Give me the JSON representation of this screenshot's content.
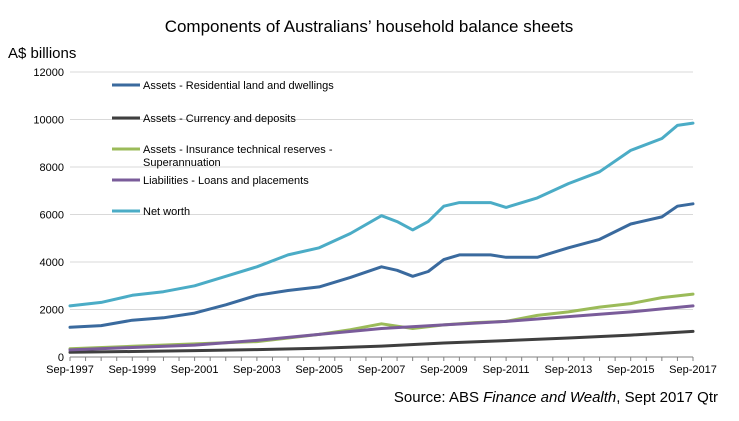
{
  "chart_data": {
    "type": "line",
    "title": "Components of Australians’ household balance sheets",
    "ylabel": "A$ billions",
    "xlabel": "",
    "ylim": [
      0,
      12000
    ],
    "yticks": [
      0,
      2000,
      4000,
      6000,
      8000,
      10000,
      12000
    ],
    "xlim": [
      "1997-09",
      "2017-09"
    ],
    "x_tick_labels": [
      "Sep-1997",
      "Sep-1999",
      "Sep-2001",
      "Sep-2003",
      "Sep-2005",
      "Sep-2007",
      "Sep-2009",
      "Sep-2011",
      "Sep-2013",
      "Sep-2015",
      "Sep-2017"
    ],
    "grid": "horizontal",
    "legend_placement": "top-left",
    "series": [
      {
        "name": "Assets - Residential land and dwellings",
        "color": "#3a6a9e",
        "points": [
          [
            "1997-09",
            1250
          ],
          [
            "1998-09",
            1320
          ],
          [
            "1999-09",
            1550
          ],
          [
            "2000-09",
            1650
          ],
          [
            "2001-09",
            1850
          ],
          [
            "2002-09",
            2200
          ],
          [
            "2003-09",
            2600
          ],
          [
            "2004-09",
            2800
          ],
          [
            "2005-09",
            2950
          ],
          [
            "2006-09",
            3350
          ],
          [
            "2007-09",
            3800
          ],
          [
            "2008-03",
            3650
          ],
          [
            "2008-09",
            3400
          ],
          [
            "2009-03",
            3600
          ],
          [
            "2009-09",
            4100
          ],
          [
            "2010-03",
            4300
          ],
          [
            "2010-09",
            4300
          ],
          [
            "2011-03",
            4300
          ],
          [
            "2011-09",
            4200
          ],
          [
            "2012-09",
            4200
          ],
          [
            "2013-09",
            4600
          ],
          [
            "2014-09",
            4950
          ],
          [
            "2015-09",
            5600
          ],
          [
            "2016-09",
            5900
          ],
          [
            "2017-03",
            6350
          ],
          [
            "2017-09",
            6450
          ]
        ]
      },
      {
        "name": "Assets - Currency and deposits",
        "color": "#3f3f3f",
        "points": [
          [
            "1997-09",
            200
          ],
          [
            "1999-09",
            230
          ],
          [
            "2001-09",
            270
          ],
          [
            "2003-09",
            310
          ],
          [
            "2005-09",
            370
          ],
          [
            "2007-09",
            460
          ],
          [
            "2009-09",
            590
          ],
          [
            "2011-09",
            690
          ],
          [
            "2013-09",
            800
          ],
          [
            "2015-09",
            920
          ],
          [
            "2017-09",
            1080
          ]
        ]
      },
      {
        "name": "Assets - Insurance technical reserves - Superannuation",
        "color": "#9bbb59",
        "points": [
          [
            "1997-09",
            350
          ],
          [
            "1999-09",
            450
          ],
          [
            "2001-09",
            550
          ],
          [
            "2003-09",
            650
          ],
          [
            "2005-09",
            950
          ],
          [
            "2006-09",
            1150
          ],
          [
            "2007-09",
            1400
          ],
          [
            "2008-09",
            1200
          ],
          [
            "2009-09",
            1350
          ],
          [
            "2010-09",
            1450
          ],
          [
            "2011-09",
            1500
          ],
          [
            "2012-09",
            1750
          ],
          [
            "2013-09",
            1900
          ],
          [
            "2014-09",
            2100
          ],
          [
            "2015-09",
            2250
          ],
          [
            "2016-09",
            2500
          ],
          [
            "2017-09",
            2650
          ]
        ]
      },
      {
        "name": "Liabilities - Loans and placements",
        "color": "#7a5c9a",
        "points": [
          [
            "1997-09",
            300
          ],
          [
            "1999-09",
            400
          ],
          [
            "2001-09",
            500
          ],
          [
            "2003-09",
            700
          ],
          [
            "2005-09",
            950
          ],
          [
            "2007-09",
            1200
          ],
          [
            "2009-09",
            1350
          ],
          [
            "2011-09",
            1500
          ],
          [
            "2013-09",
            1700
          ],
          [
            "2015-09",
            1900
          ],
          [
            "2017-09",
            2150
          ]
        ]
      },
      {
        "name": "Net worth",
        "color": "#4bacc6",
        "points": [
          [
            "1997-09",
            2150
          ],
          [
            "1998-09",
            2300
          ],
          [
            "1999-09",
            2600
          ],
          [
            "2000-09",
            2750
          ],
          [
            "2001-09",
            3000
          ],
          [
            "2002-09",
            3400
          ],
          [
            "2003-09",
            3800
          ],
          [
            "2004-09",
            4300
          ],
          [
            "2005-09",
            4600
          ],
          [
            "2006-09",
            5200
          ],
          [
            "2007-09",
            5950
          ],
          [
            "2008-03",
            5700
          ],
          [
            "2008-09",
            5350
          ],
          [
            "2009-03",
            5700
          ],
          [
            "2009-09",
            6350
          ],
          [
            "2010-03",
            6500
          ],
          [
            "2010-09",
            6500
          ],
          [
            "2011-03",
            6500
          ],
          [
            "2011-09",
            6300
          ],
          [
            "2012-09",
            6700
          ],
          [
            "2013-09",
            7300
          ],
          [
            "2014-09",
            7800
          ],
          [
            "2015-09",
            8700
          ],
          [
            "2016-09",
            9200
          ],
          [
            "2017-03",
            9750
          ],
          [
            "2017-09",
            9850
          ]
        ]
      }
    ]
  },
  "source": {
    "prefix": "Source: ABS ",
    "italic": "Finance and Wealth",
    "suffix": ", Sept 2017 Qtr"
  }
}
